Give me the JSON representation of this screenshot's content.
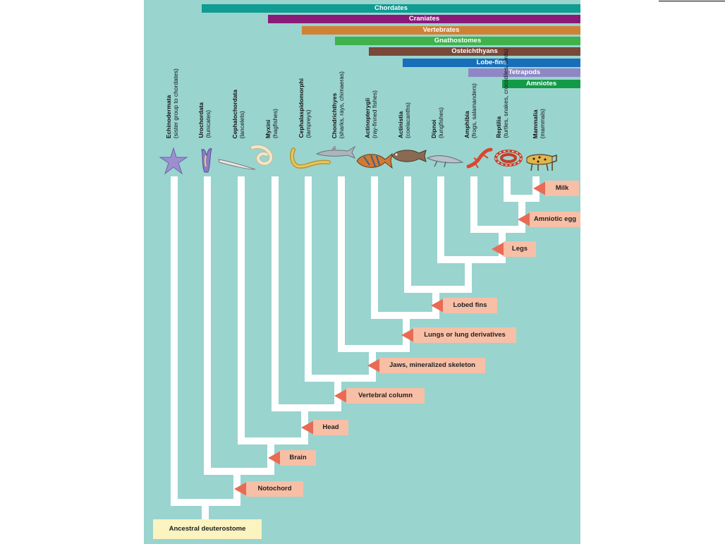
{
  "clades": [
    {
      "label": "Chordates",
      "color": "#0e9c93"
    },
    {
      "label": "Craniates",
      "color": "#8a1a78"
    },
    {
      "label": "Vertebrates",
      "color": "#d08234"
    },
    {
      "label": "Gnathostomes",
      "color": "#3fb24c"
    },
    {
      "label": "Osteichthyans",
      "color": "#784838"
    },
    {
      "label": "Lobe-fins",
      "color": "#166fb8"
    },
    {
      "label": "Tetrapods",
      "color": "#8f87c5"
    },
    {
      "label": "Amniotes",
      "color": "#139a47"
    }
  ],
  "taxa": [
    {
      "name": "Echinodermata",
      "note": "(sister group to chordates)",
      "animal": "sea-star"
    },
    {
      "name": "Urochordata",
      "note": "(tunicates)",
      "animal": "tunicate"
    },
    {
      "name": "Cephalochordata",
      "note": "(lancelets)",
      "animal": "lancelet"
    },
    {
      "name": "Myxini",
      "note": "(hagfishes)",
      "animal": "hagfish"
    },
    {
      "name": "Cephalaspidomorphi",
      "note": "(lampreys)",
      "animal": "lamprey"
    },
    {
      "name": "Chondrichthyes",
      "note": "(sharks, rays, chimaeras)",
      "animal": "shark"
    },
    {
      "name": "Actinopterygii",
      "note": "(ray-finned fishes)",
      "animal": "ray-finned-fish"
    },
    {
      "name": "Actinistia",
      "note": "(coelacanths)",
      "animal": "coelacanth"
    },
    {
      "name": "Dipnoi",
      "note": "(lungfishes)",
      "animal": "lungfish"
    },
    {
      "name": "Amphibia",
      "note": "(frogs, salamanders)",
      "animal": "salamander"
    },
    {
      "name": "Reptilia",
      "note": "(turtles, snakes, crocodiles, birds)",
      "animal": "snake"
    },
    {
      "name": "Mammalia",
      "note": "(mammals)",
      "animal": "leopard"
    }
  ],
  "traits": [
    "Milk",
    "Amniotic egg",
    "Legs",
    "Lobed fins",
    "Lungs or lung derivatives",
    "Jaws, mineralized skeleton",
    "Vertebral column",
    "Head",
    "Brain",
    "Notochord"
  ],
  "root": "Ancestral deuterostome",
  "colors": {
    "background": "#99d4cf",
    "branch": "#ffffff",
    "trait_arrow": "#ea6a54",
    "trait_label": "#f7bfa6",
    "root_box": "#fbf3c0"
  }
}
